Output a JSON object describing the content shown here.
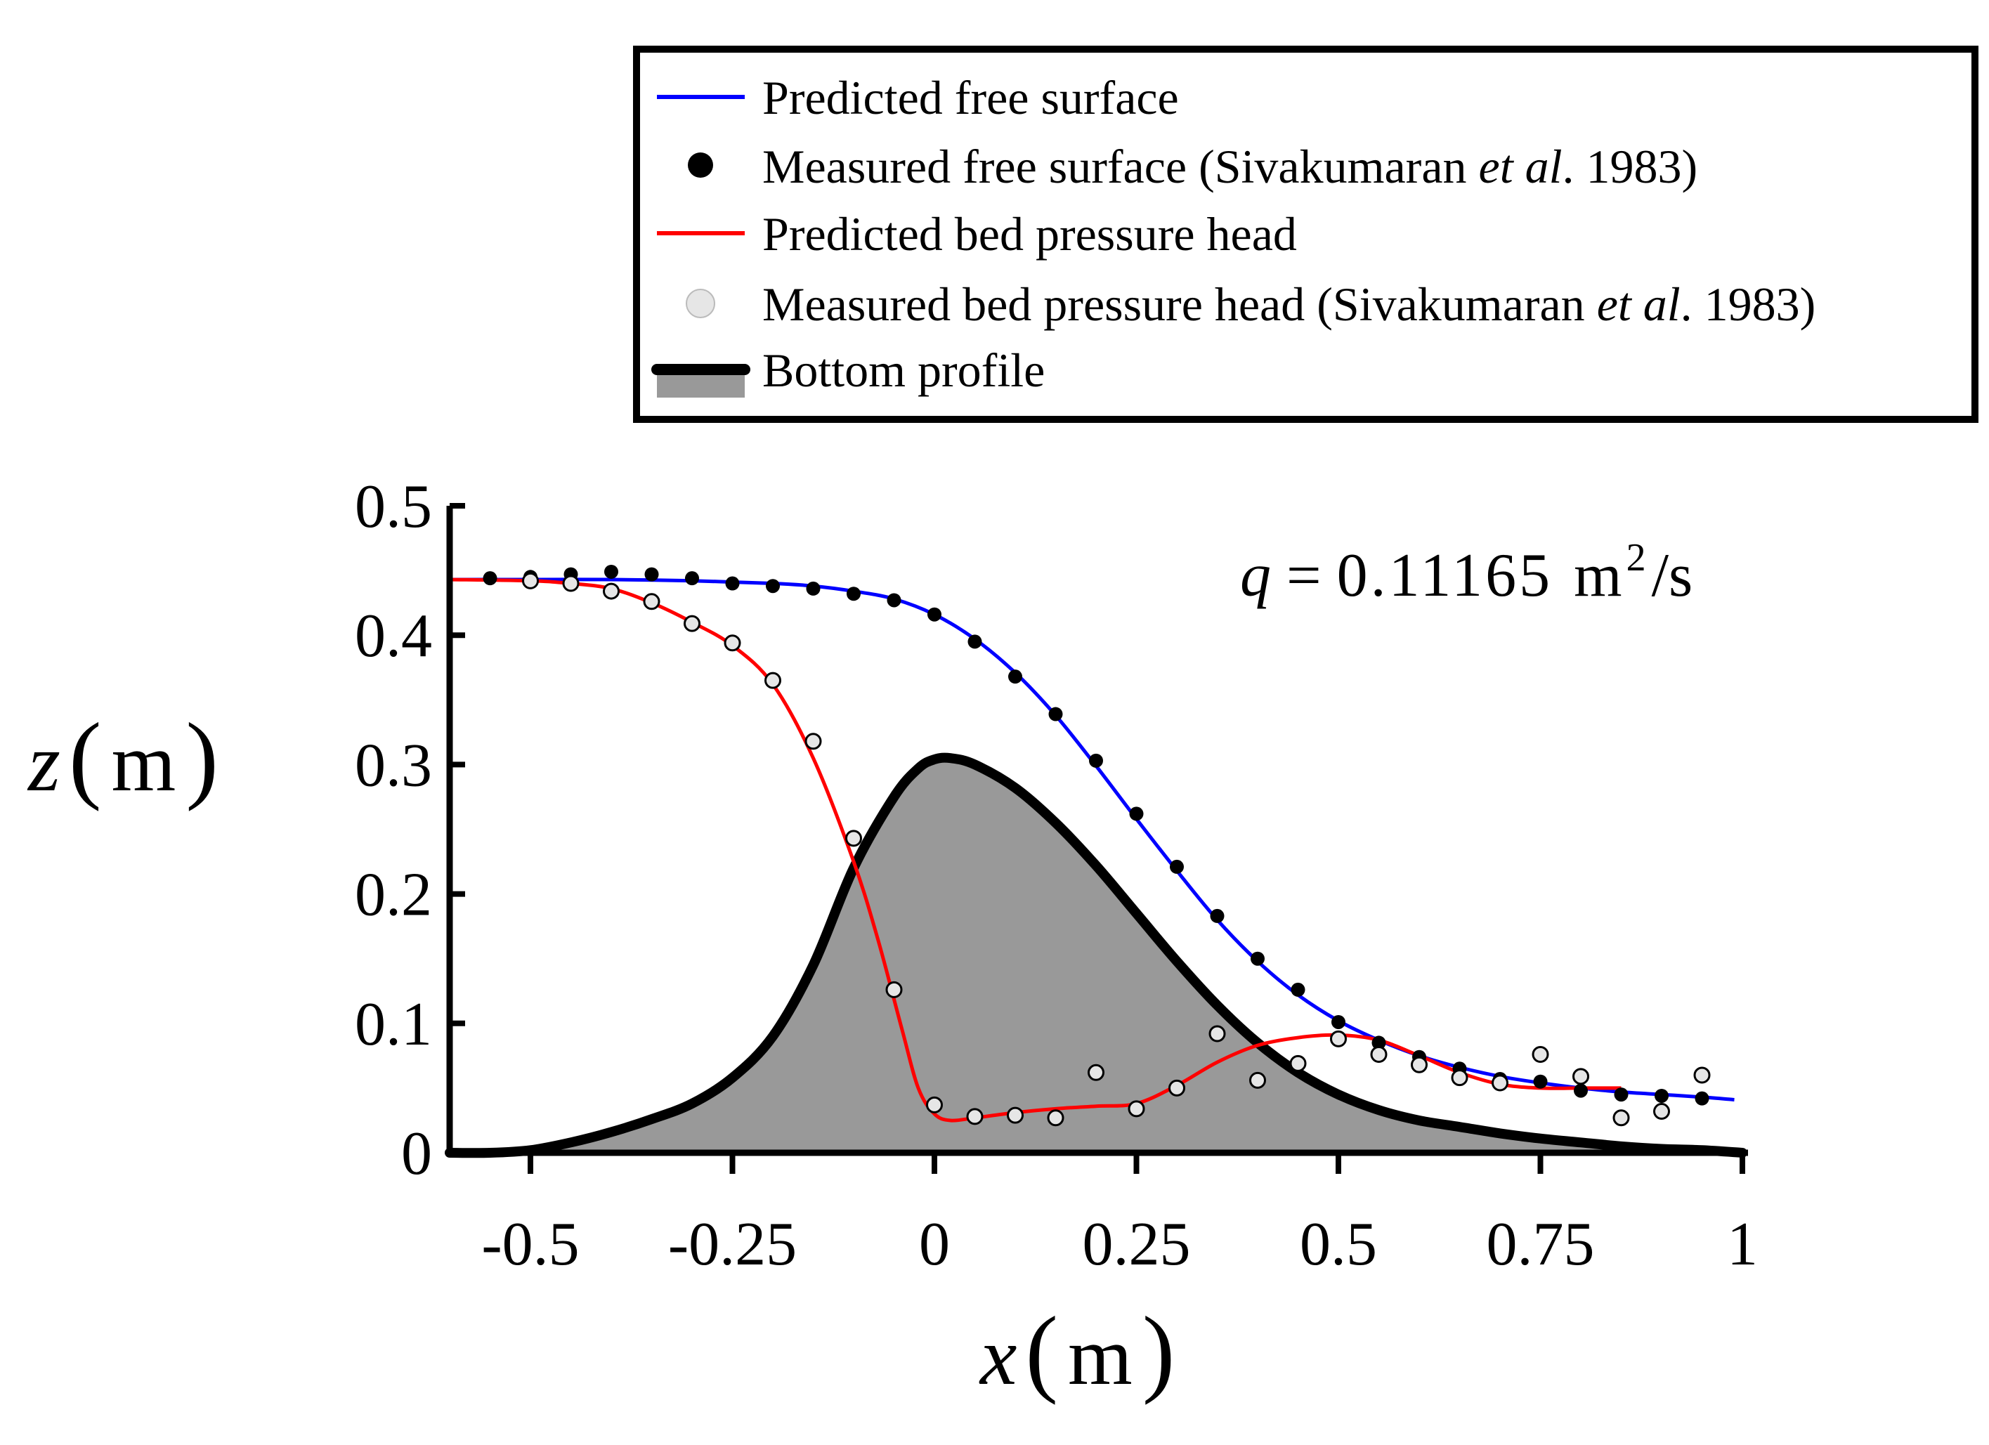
{
  "chart_data": {
    "type": "line",
    "annotation": {
      "q_symbol": "q",
      "equals": "=",
      "value": "0.11165",
      "unit_base": "m",
      "unit_exp": "2",
      "unit_tail": "/s"
    },
    "xlabel": {
      "var": "x",
      "open": "(",
      "unit": "m",
      "close": ")"
    },
    "ylabel": {
      "var": "z",
      "open": "(",
      "unit": "m",
      "close": ")"
    },
    "xlim": [
      -0.6,
      1.0
    ],
    "ylim": [
      0,
      0.5
    ],
    "xticks": [
      {
        "value": -0.5,
        "label": "-0.5"
      },
      {
        "value": -0.25,
        "label": "-0.25"
      },
      {
        "value": 0,
        "label": "0"
      },
      {
        "value": 0.25,
        "label": "0.25"
      },
      {
        "value": 0.5,
        "label": "0.5"
      },
      {
        "value": 0.75,
        "label": "0.75"
      },
      {
        "value": 1.0,
        "label": "1"
      }
    ],
    "yticks": [
      {
        "value": 0,
        "label": "0"
      },
      {
        "value": 0.1,
        "label": "0.1"
      },
      {
        "value": 0.2,
        "label": "0.2"
      },
      {
        "value": 0.3,
        "label": "0.3"
      },
      {
        "value": 0.4,
        "label": "0.4"
      },
      {
        "value": 0.5,
        "label": "0.5"
      }
    ],
    "legend": {
      "position": "top-right",
      "entries": [
        {
          "key": "predicted_free_surface",
          "parts": [
            {
              "text": "Predicted free surface",
              "italic": false
            }
          ]
        },
        {
          "key": "measured_free_surface",
          "parts": [
            {
              "text": "Measured free surface (Sivakumaran ",
              "italic": false
            },
            {
              "text": "et al",
              "italic": true
            },
            {
              "text": ". 1983)",
              "italic": false
            }
          ]
        },
        {
          "key": "predicted_bed_pressure",
          "parts": [
            {
              "text": "Predicted bed pressure head",
              "italic": false
            }
          ]
        },
        {
          "key": "measured_bed_pressure",
          "parts": [
            {
              "text": "Measured bed pressure head (Sivakumaran ",
              "italic": false
            },
            {
              "text": "et al",
              "italic": true
            },
            {
              "text": ". 1983)",
              "italic": false
            }
          ]
        },
        {
          "key": "bottom_profile",
          "parts": [
            {
              "text": "Bottom profile",
              "italic": false
            }
          ]
        }
      ]
    },
    "colors": {
      "free_surface": "#0000ff",
      "bed_pressure": "#ff0000",
      "bottom_line": "#000000",
      "bottom_fill": "#999999",
      "measured_free_fill": "#000000",
      "measured_bed_fill": "#e6e6e6"
    },
    "series": [
      {
        "name": "Predicted free surface",
        "key": "predicted_free_surface",
        "x": [
          -0.6,
          -0.5,
          -0.4,
          -0.3,
          -0.2,
          -0.15,
          -0.1,
          -0.05,
          0.0,
          0.05,
          0.1,
          0.15,
          0.2,
          0.25,
          0.3,
          0.35,
          0.4,
          0.45,
          0.5,
          0.55,
          0.6,
          0.65,
          0.7,
          0.75,
          0.8,
          0.85,
          0.9,
          0.95,
          0.99
        ],
        "y": [
          0.443,
          0.443,
          0.443,
          0.442,
          0.44,
          0.438,
          0.434,
          0.428,
          0.416,
          0.397,
          0.371,
          0.338,
          0.299,
          0.258,
          0.218,
          0.18,
          0.148,
          0.122,
          0.102,
          0.087,
          0.075,
          0.066,
          0.059,
          0.054,
          0.05,
          0.047,
          0.045,
          0.043,
          0.041
        ]
      },
      {
        "name": "Measured free surface (Sivakumaran et al. 1983)",
        "key": "measured_free_surface",
        "x": [
          -0.55,
          -0.5,
          -0.45,
          -0.4,
          -0.35,
          -0.3,
          -0.25,
          -0.2,
          -0.15,
          -0.1,
          -0.05,
          0.0,
          0.05,
          0.1,
          0.15,
          0.2,
          0.25,
          0.3,
          0.35,
          0.4,
          0.45,
          0.5,
          0.55,
          0.6,
          0.65,
          0.7,
          0.75,
          0.8,
          0.85,
          0.9,
          0.95
        ],
        "y": [
          0.444,
          0.445,
          0.447,
          0.449,
          0.447,
          0.444,
          0.44,
          0.438,
          0.436,
          0.432,
          0.427,
          0.416,
          0.395,
          0.368,
          0.339,
          0.303,
          0.262,
          0.221,
          0.183,
          0.15,
          0.126,
          0.101,
          0.085,
          0.074,
          0.065,
          0.057,
          0.055,
          0.048,
          0.045,
          0.044,
          0.042
        ]
      },
      {
        "name": "Predicted bed pressure head",
        "key": "predicted_bed_pressure",
        "x": [
          -0.6,
          -0.5,
          -0.45,
          -0.4,
          -0.35,
          -0.3,
          -0.25,
          -0.2,
          -0.15,
          -0.1,
          -0.07,
          -0.04,
          -0.02,
          0.0,
          0.02,
          0.05,
          0.1,
          0.15,
          0.2,
          0.25,
          0.3,
          0.35,
          0.4,
          0.45,
          0.5,
          0.55,
          0.6,
          0.65,
          0.7,
          0.75,
          0.8,
          0.85
        ],
        "y": [
          0.443,
          0.442,
          0.44,
          0.436,
          0.425,
          0.41,
          0.392,
          0.362,
          0.305,
          0.225,
          0.165,
          0.095,
          0.05,
          0.03,
          0.025,
          0.027,
          0.031,
          0.034,
          0.036,
          0.038,
          0.052,
          0.07,
          0.083,
          0.089,
          0.091,
          0.087,
          0.075,
          0.062,
          0.053,
          0.05,
          0.05,
          0.05
        ]
      },
      {
        "name": "Measured bed pressure head (Sivakumaran et al. 1983)",
        "key": "measured_bed_pressure",
        "x": [
          -0.5,
          -0.45,
          -0.4,
          -0.35,
          -0.3,
          -0.25,
          -0.2,
          -0.15,
          -0.1,
          -0.05,
          0.0,
          0.05,
          0.1,
          0.15,
          0.2,
          0.25,
          0.3,
          0.35,
          0.4,
          0.45,
          0.5,
          0.55,
          0.6,
          0.65,
          0.7,
          0.75,
          0.8,
          0.85,
          0.9,
          0.95
        ],
        "y": [
          0.442,
          0.44,
          0.434,
          0.426,
          0.409,
          0.394,
          0.365,
          0.318,
          0.243,
          0.126,
          0.037,
          0.028,
          0.029,
          0.027,
          0.062,
          0.034,
          0.05,
          0.092,
          0.056,
          0.069,
          0.088,
          0.076,
          0.068,
          0.058,
          0.054,
          0.076,
          0.059,
          0.027,
          0.032,
          0.06
        ]
      },
      {
        "name": "Bottom profile",
        "key": "bottom_profile",
        "x": [
          -0.6,
          -0.55,
          -0.5,
          -0.45,
          -0.4,
          -0.35,
          -0.3,
          -0.25,
          -0.2,
          -0.15,
          -0.1,
          -0.05,
          -0.02,
          0.0,
          0.02,
          0.05,
          0.1,
          0.15,
          0.2,
          0.25,
          0.3,
          0.35,
          0.4,
          0.45,
          0.5,
          0.55,
          0.6,
          0.65,
          0.7,
          0.75,
          0.8,
          0.85,
          0.9,
          0.95,
          1.0
        ],
        "y": [
          0.0,
          0.0,
          0.002,
          0.008,
          0.016,
          0.026,
          0.038,
          0.058,
          0.09,
          0.145,
          0.22,
          0.275,
          0.297,
          0.304,
          0.305,
          0.3,
          0.282,
          0.255,
          0.222,
          0.185,
          0.148,
          0.114,
          0.085,
          0.062,
          0.045,
          0.033,
          0.025,
          0.02,
          0.015,
          0.011,
          0.008,
          0.005,
          0.003,
          0.002,
          0.0
        ]
      }
    ]
  }
}
